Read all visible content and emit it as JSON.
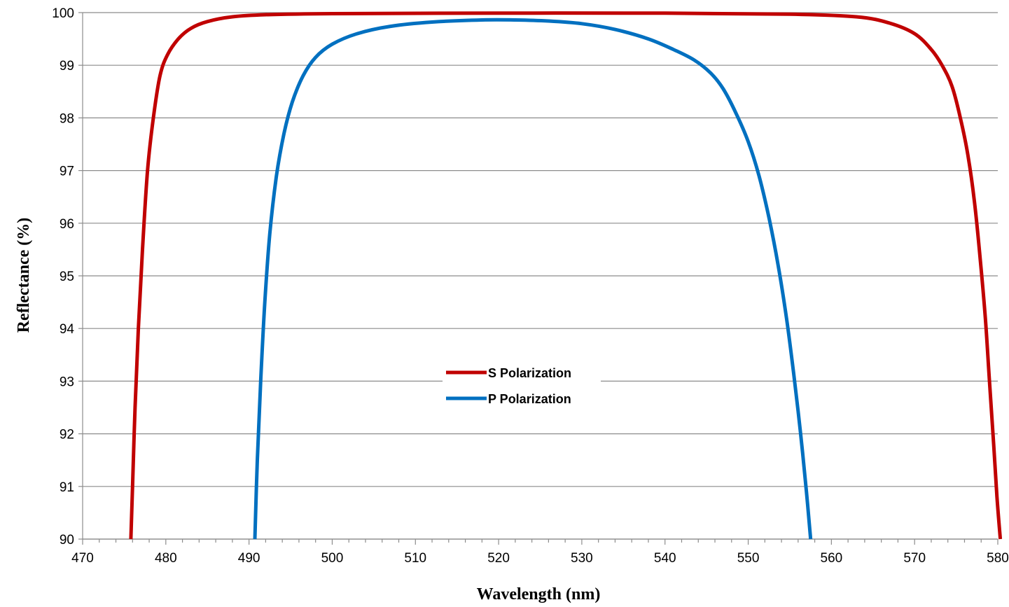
{
  "chart_data": {
    "type": "line",
    "xlabel": "Wavelength (nm)",
    "ylabel": "Reflectance (%)",
    "xlim": [
      470,
      580
    ],
    "ylim": [
      90,
      100
    ],
    "x_ticks": [
      "470",
      "480",
      "490",
      "500",
      "510",
      "520",
      "530",
      "540",
      "550",
      "560",
      "570",
      "580"
    ],
    "y_ticks": [
      "90",
      "91",
      "92",
      "93",
      "94",
      "95",
      "96",
      "97",
      "98",
      "99",
      "100"
    ],
    "grid": "horizontal",
    "legend_position": "center",
    "series": [
      {
        "name": "S Polarization",
        "color": "#c00000",
        "x": [
          475.8,
          476.0,
          476.3,
          476.7,
          477.2,
          477.8,
          478.5,
          479.3,
          480.2,
          481.5,
          483.0,
          485.0,
          488.0,
          492.0,
          500.0,
          520.0,
          540.0,
          555.0,
          563.0,
          567.0,
          570.0,
          572.0,
          573.3,
          574.5,
          575.5,
          576.4,
          577.2,
          577.9,
          578.5,
          579.0,
          579.5,
          579.9,
          580.3
        ],
        "y": [
          90.0,
          91.0,
          92.5,
          94.0,
          95.5,
          97.0,
          98.0,
          98.8,
          99.2,
          99.5,
          99.7,
          99.83,
          99.92,
          99.96,
          99.98,
          99.99,
          99.99,
          99.97,
          99.92,
          99.8,
          99.6,
          99.3,
          99.0,
          98.6,
          98.0,
          97.3,
          96.4,
          95.3,
          94.2,
          93.0,
          91.8,
          90.8,
          90.0
        ]
      },
      {
        "name": "P Polarization",
        "color": "#0070c0",
        "x": [
          490.7,
          491.0,
          491.4,
          491.9,
          492.5,
          493.3,
          494.2,
          495.2,
          496.5,
          498.0,
          500.0,
          503.0,
          507.0,
          512.0,
          518.0,
          522.0,
          526.0,
          530.0,
          534.0,
          538.0,
          541.0,
          543.5,
          545.5,
          547.0,
          548.5,
          550.0,
          551.3,
          552.5,
          553.6,
          554.6,
          555.5,
          556.3,
          557.0,
          557.5
        ],
        "y": [
          90.0,
          91.5,
          93.0,
          94.5,
          95.8,
          96.9,
          97.7,
          98.3,
          98.8,
          99.15,
          99.4,
          99.6,
          99.74,
          99.82,
          99.86,
          99.86,
          99.84,
          99.79,
          99.68,
          99.5,
          99.3,
          99.1,
          98.85,
          98.55,
          98.1,
          97.55,
          96.9,
          96.1,
          95.2,
          94.2,
          93.1,
          92.0,
          90.9,
          90.0
        ]
      }
    ]
  }
}
